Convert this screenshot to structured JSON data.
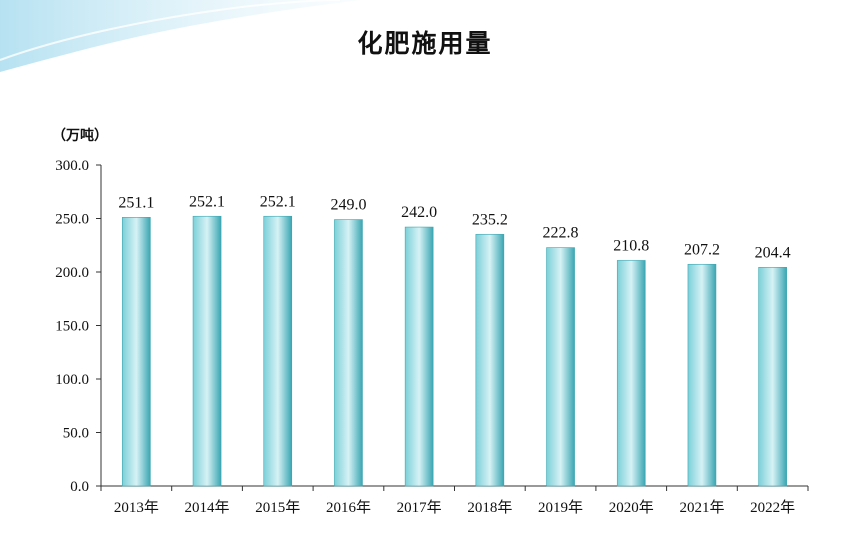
{
  "colors": {
    "bar_light": "#d6f2f5",
    "bar_mid": "#7cd0d8",
    "bar_dark": "#3aa6b2",
    "axis": "#333333",
    "decor": "#bfe6f3"
  },
  "chart_data": {
    "type": "bar",
    "title": "化肥施用量",
    "unit": "（万吨）",
    "xlabel": "",
    "ylabel": "",
    "ylim": [
      0,
      300
    ],
    "y_ticks": [
      "0.0",
      "50.0",
      "100.0",
      "150.0",
      "200.0",
      "250.0",
      "300.0"
    ],
    "categories": [
      "2013年",
      "2014年",
      "2015年",
      "2016年",
      "2017年",
      "2018年",
      "2019年",
      "2020年",
      "2021年",
      "2022年"
    ],
    "values": [
      251.1,
      252.1,
      252.1,
      249.0,
      242.0,
      235.2,
      222.8,
      210.8,
      207.2,
      204.4
    ],
    "value_labels": [
      "251.1",
      "252.1",
      "252.1",
      "249.0",
      "242.0",
      "235.2",
      "222.8",
      "210.8",
      "207.2",
      "204.4"
    ],
    "grid": false,
    "legend": "none"
  }
}
